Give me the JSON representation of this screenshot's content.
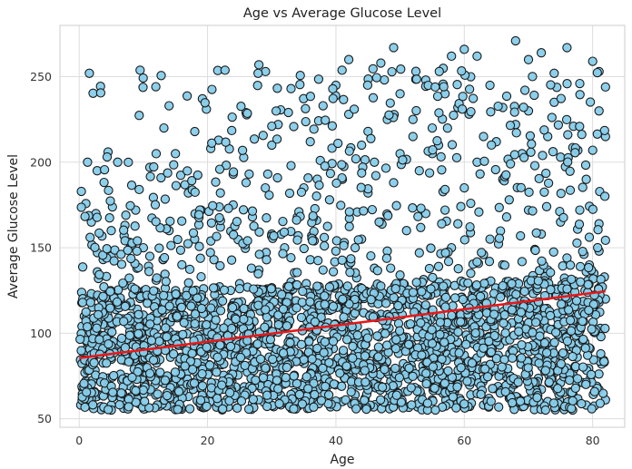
{
  "chart_data": {
    "type": "scatter",
    "title": "Age vs Average Glucose Level",
    "xlabel": "Age",
    "ylabel": "Average Glucose Level",
    "xlim": [
      -3,
      85
    ],
    "ylim": [
      45,
      280
    ],
    "xticks": [
      0,
      20,
      40,
      60,
      80
    ],
    "yticks": [
      50,
      100,
      150,
      200,
      250
    ],
    "grid": true,
    "colors": {
      "point_fill": "#87CEEB",
      "point_edge": "#1a1a1a",
      "trend_line": "#e41a1c",
      "grid": "#dddddd",
      "frame": "#cccccc"
    },
    "trend_line": {
      "x": [
        0,
        82
      ],
      "y": [
        85.5,
        124.5
      ]
    },
    "x_range_data": [
      0.08,
      82
    ],
    "y_range_data": [
      55,
      272
    ],
    "points": [
      [
        0.24,
        58
      ],
      [
        0.5,
        68
      ],
      [
        1,
        72
      ],
      [
        1.2,
        88
      ],
      [
        1.5,
        95
      ],
      [
        1.8,
        60
      ],
      [
        1.3,
        200
      ],
      [
        2.8,
        195
      ],
      [
        1.9,
        165
      ],
      [
        2.6,
        170
      ],
      [
        4.5,
        206
      ],
      [
        6,
        200
      ],
      [
        14,
        233
      ],
      [
        13.2,
        220
      ],
      [
        12,
        205
      ],
      [
        8.8,
        172
      ],
      [
        20.5,
        208
      ],
      [
        28,
        257
      ],
      [
        26,
        229
      ],
      [
        30,
        210
      ],
      [
        33,
        243
      ],
      [
        36,
        212
      ],
      [
        38,
        233
      ],
      [
        40,
        245
      ],
      [
        42,
        228
      ],
      [
        45,
        218
      ],
      [
        47,
        258
      ],
      [
        49,
        267
      ],
      [
        50,
        240
      ],
      [
        52,
        225
      ],
      [
        54,
        248
      ],
      [
        55,
        205
      ],
      [
        57,
        240
      ],
      [
        58,
        262
      ],
      [
        60,
        266
      ],
      [
        61,
        250
      ],
      [
        62,
        262
      ],
      [
        64,
        245
      ],
      [
        65,
        212
      ],
      [
        66,
        232
      ],
      [
        68,
        271
      ],
      [
        70,
        260
      ],
      [
        72,
        264
      ],
      [
        74,
        252
      ],
      [
        76,
        267
      ],
      [
        78,
        246
      ],
      [
        80,
        259
      ],
      [
        81,
        253
      ],
      [
        82,
        244
      ],
      [
        42,
        260
      ],
      [
        44,
        210
      ],
      [
        46,
        200
      ],
      [
        48,
        225
      ],
      [
        50,
        205
      ],
      [
        52,
        215
      ],
      [
        53,
        195
      ],
      [
        55,
        220
      ],
      [
        56,
        210
      ],
      [
        59,
        232
      ],
      [
        60,
        185
      ],
      [
        62,
        200
      ],
      [
        63,
        215
      ],
      [
        66,
        190
      ],
      [
        68,
        222
      ],
      [
        69,
        205
      ],
      [
        70,
        230
      ],
      [
        71,
        198
      ],
      [
        73,
        215
      ],
      [
        74,
        235
      ],
      [
        75,
        203
      ],
      [
        77,
        221
      ],
      [
        79,
        190
      ],
      [
        80,
        207
      ],
      [
        81,
        230
      ],
      [
        82,
        215
      ],
      [
        35,
        185
      ],
      [
        37,
        166
      ],
      [
        39,
        178
      ],
      [
        41,
        190
      ],
      [
        43,
        150
      ],
      [
        45,
        182
      ],
      [
        47,
        165
      ],
      [
        49,
        188
      ],
      [
        51,
        160
      ],
      [
        54,
        170
      ],
      [
        57,
        172
      ],
      [
        59,
        164
      ],
      [
        61,
        176
      ],
      [
        64,
        155
      ],
      [
        67,
        178
      ],
      [
        70,
        172
      ],
      [
        72,
        158
      ],
      [
        75,
        165
      ],
      [
        78,
        172
      ],
      [
        81,
        164
      ],
      [
        10,
        150
      ],
      [
        14,
        160
      ],
      [
        18,
        155
      ],
      [
        22,
        162
      ],
      [
        24,
        175
      ],
      [
        27,
        168
      ],
      [
        30,
        158
      ],
      [
        32,
        150
      ],
      [
        34,
        168
      ],
      [
        36,
        143
      ],
      [
        38,
        137
      ],
      [
        40,
        148
      ],
      [
        42,
        140
      ],
      [
        44,
        155
      ],
      [
        46,
        138
      ],
      [
        48,
        148
      ],
      [
        50,
        134
      ],
      [
        53,
        147
      ],
      [
        56,
        139
      ],
      [
        58,
        150
      ],
      [
        61,
        135
      ],
      [
        63,
        146
      ],
      [
        66,
        140
      ],
      [
        68,
        130
      ],
      [
        71,
        149
      ],
      [
        73,
        137
      ],
      [
        76,
        144
      ],
      [
        79,
        136
      ],
      [
        81,
        148
      ],
      [
        3,
        132
      ],
      [
        5,
        145
      ],
      [
        7,
        128
      ],
      [
        9,
        138
      ],
      [
        12,
        131
      ],
      [
        16,
        140
      ],
      [
        19,
        133
      ],
      [
        21,
        143
      ],
      [
        25,
        129
      ],
      [
        28,
        137
      ],
      [
        31,
        124
      ],
      [
        33,
        130
      ],
      [
        5,
        160
      ],
      [
        7,
        157
      ],
      [
        9,
        148
      ],
      [
        11,
        145
      ],
      [
        15,
        205
      ],
      [
        11,
        197
      ],
      [
        17,
        182
      ],
      [
        19,
        172
      ],
      [
        22,
        182
      ],
      [
        24,
        193
      ],
      [
        26,
        188
      ],
      [
        29,
        185
      ],
      [
        31,
        222
      ],
      [
        33,
        198
      ],
      [
        0.8,
        110
      ],
      [
        1.5,
        120
      ],
      [
        2.4,
        105
      ],
      [
        3.1,
        98
      ],
      [
        3.8,
        115
      ],
      [
        4.6,
        102
      ],
      [
        5.5,
        92
      ],
      [
        6.2,
        118
      ],
      [
        7.1,
        84
      ],
      [
        8.0,
        110
      ],
      [
        8.9,
        95
      ],
      [
        9.7,
        79
      ],
      [
        10.5,
        123
      ],
      [
        11.3,
        102
      ],
      [
        12.1,
        88
      ],
      [
        13.0,
        112
      ],
      [
        13.8,
        74
      ],
      [
        14.6,
        97
      ],
      [
        15.5,
        118
      ],
      [
        16.3,
        85
      ],
      [
        17.1,
        106
      ],
      [
        18.0,
        92
      ],
      [
        18.8,
        124
      ],
      [
        19.6,
        78
      ],
      [
        20.5,
        101
      ],
      [
        21.3,
        115
      ],
      [
        22.1,
        89
      ],
      [
        23.0,
        104
      ],
      [
        23.8,
        72
      ],
      [
        24.6,
        118
      ],
      [
        25.5,
        95
      ],
      [
        26.3,
        108
      ],
      [
        27.1,
        82
      ],
      [
        28.0,
        121
      ],
      [
        28.8,
        99
      ],
      [
        29.6,
        86
      ],
      [
        30.5,
        113
      ],
      [
        31.3,
        76
      ],
      [
        32.1,
        104
      ],
      [
        33.0,
        93
      ],
      [
        33.8,
        119
      ],
      [
        34.6,
        84
      ],
      [
        35.5,
        109
      ],
      [
        36.3,
        98
      ],
      [
        37.1,
        125
      ],
      [
        38.0,
        80
      ],
      [
        38.8,
        106
      ],
      [
        39.6,
        91
      ],
      [
        40.5,
        117
      ],
      [
        41.3,
        74
      ],
      [
        42.1,
        102
      ],
      [
        43.0,
        88
      ],
      [
        43.8,
        120
      ],
      [
        44.6,
        96
      ],
      [
        45.5,
        110
      ],
      [
        46.3,
        83
      ],
      [
        47.1,
        122
      ],
      [
        48.0,
        101
      ],
      [
        48.8,
        77
      ],
      [
        49.6,
        114
      ],
      [
        50.5,
        92
      ],
      [
        51.3,
        105
      ],
      [
        52.1,
        86
      ],
      [
        53.0,
        124
      ],
      [
        53.8,
        99
      ],
      [
        54.6,
        112
      ],
      [
        55.5,
        79
      ],
      [
        56.3,
        118
      ],
      [
        57.1,
        95
      ],
      [
        58.0,
        108
      ],
      [
        58.8,
        90
      ],
      [
        59.6,
        121
      ],
      [
        60.5,
        84
      ],
      [
        61.3,
        103
      ],
      [
        62.1,
        117
      ],
      [
        63.0,
        97
      ],
      [
        63.8,
        76
      ],
      [
        64.6,
        111
      ],
      [
        65.5,
        93
      ],
      [
        66.3,
        124
      ],
      [
        67.1,
        88
      ],
      [
        68.0,
        106
      ],
      [
        68.8,
        119
      ],
      [
        69.6,
        81
      ],
      [
        70.5,
        101
      ],
      [
        71.3,
        114
      ],
      [
        72.1,
        94
      ],
      [
        73.0,
        122
      ],
      [
        73.8,
        85
      ],
      [
        74.6,
        108
      ],
      [
        75.5,
        97
      ],
      [
        76.3,
        118
      ],
      [
        77.1,
        79
      ],
      [
        78.0,
        104
      ],
      [
        78.8,
        125
      ],
      [
        79.6,
        91
      ],
      [
        80.5,
        112
      ],
      [
        81.3,
        98
      ],
      [
        82.0,
        120
      ],
      [
        1,
        60
      ],
      [
        3,
        64
      ],
      [
        5,
        58
      ],
      [
        7,
        70
      ],
      [
        9,
        62
      ],
      [
        11,
        66
      ],
      [
        13,
        59
      ],
      [
        15,
        71
      ],
      [
        17,
        63
      ],
      [
        19,
        57
      ],
      [
        21,
        68
      ],
      [
        23,
        61
      ],
      [
        25,
        65
      ],
      [
        27,
        59
      ],
      [
        29,
        72
      ],
      [
        31,
        63
      ],
      [
        33,
        58
      ],
      [
        35,
        67
      ],
      [
        37,
        61
      ],
      [
        39,
        70
      ],
      [
        41,
        60
      ],
      [
        43,
        64
      ],
      [
        45,
        58
      ],
      [
        47,
        69
      ],
      [
        49,
        62
      ],
      [
        51,
        57
      ],
      [
        53,
        66
      ],
      [
        55,
        61
      ],
      [
        57,
        70
      ],
      [
        59,
        59
      ],
      [
        61,
        64
      ],
      [
        63,
        58
      ],
      [
        65,
        68
      ],
      [
        67,
        62
      ],
      [
        69,
        57
      ],
      [
        71,
        66
      ],
      [
        73,
        60
      ],
      [
        75,
        71
      ],
      [
        77,
        63
      ],
      [
        79,
        58
      ],
      [
        81,
        67
      ],
      [
        82,
        61
      ]
    ]
  }
}
